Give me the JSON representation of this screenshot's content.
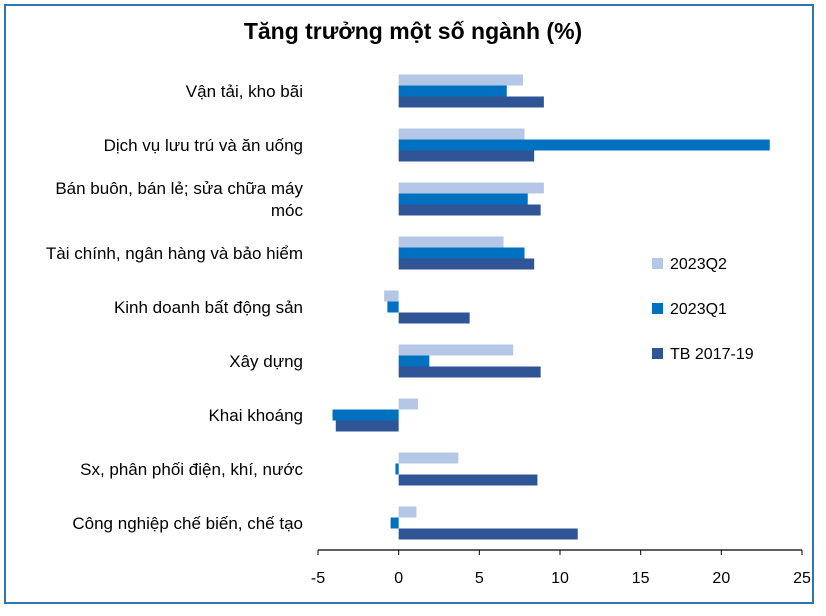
{
  "chart_data": {
    "type": "bar",
    "orientation": "horizontal",
    "title": "Tăng trưởng một số ngành (%)",
    "categories": [
      [
        "Vận tải, kho bãi"
      ],
      [
        "Dịch vụ lưu trú và ăn uống"
      ],
      [
        "Bán buôn, bán lẻ; sửa chữa máy",
        "móc"
      ],
      [
        "Tài chính, ngân hàng và bảo hiểm"
      ],
      [
        "Kinh doanh bất động sản"
      ],
      [
        "Xây dựng"
      ],
      [
        "Khai khoáng"
      ],
      [
        "Sx, phân phối điện, khí, nước"
      ],
      [
        "Công nghiệp chế biến, chế tạo"
      ]
    ],
    "series": [
      {
        "name": "2023Q2",
        "color": "#b4c7e7",
        "values": [
          7.7,
          7.8,
          9.0,
          6.5,
          -0.9,
          7.1,
          1.2,
          3.7,
          1.1
        ]
      },
      {
        "name": "2023Q1",
        "color": "#0070c0",
        "values": [
          6.7,
          23.0,
          8.0,
          7.8,
          -0.7,
          1.9,
          -4.1,
          -0.2,
          -0.5
        ]
      },
      {
        "name": "TB 2017-19",
        "color": "#2f5597",
        "values": [
          9.0,
          8.4,
          8.8,
          8.4,
          4.4,
          8.8,
          -3.9,
          8.6,
          11.1
        ]
      }
    ],
    "xlim": [
      -5,
      25
    ],
    "xticks": [
      -5,
      0,
      5,
      10,
      15,
      20,
      25
    ],
    "xlabel": "",
    "ylabel": "",
    "legend_position": "right",
    "grid": false
  }
}
